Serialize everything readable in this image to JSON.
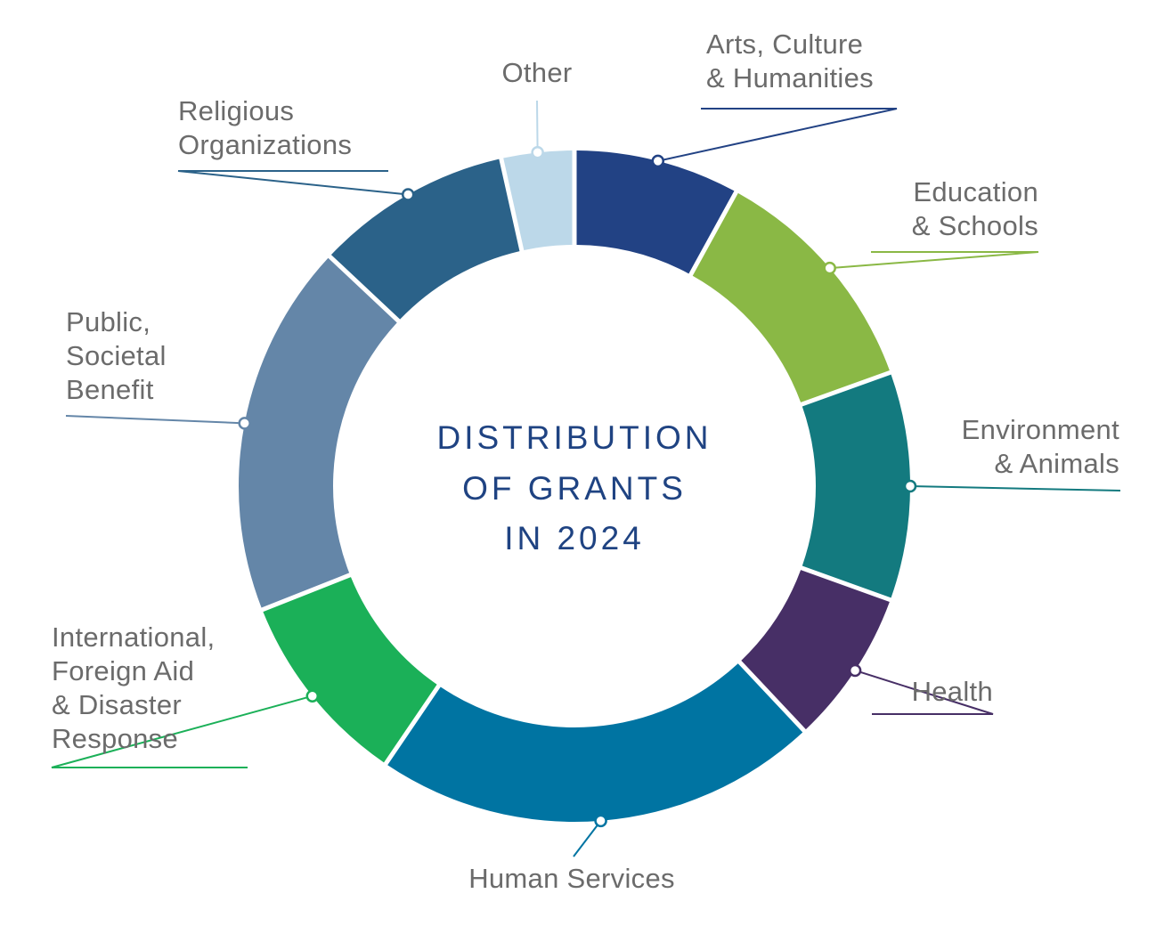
{
  "chart_data": {
    "type": "pie",
    "donut": true,
    "title_lines": [
      "DISTRIBUTION",
      "OF GRANTS",
      "IN 2024"
    ],
    "legend": "callout labels around ring",
    "slices": [
      {
        "name_lines": [
          "Arts, Culture",
          "& Humanities"
        ],
        "value": 8.0,
        "color": "#224284"
      },
      {
        "name_lines": [
          "Education",
          "& Schools"
        ],
        "value": 11.5,
        "color": "#8ab845"
      },
      {
        "name_lines": [
          "Environment",
          "& Animals"
        ],
        "value": 11.0,
        "color": "#137a7f"
      },
      {
        "name_lines": [
          "Health"
        ],
        "value": 7.5,
        "color": "#472f66"
      },
      {
        "name_lines": [
          "Human Services"
        ],
        "value": 21.5,
        "color": "#0074a2"
      },
      {
        "name_lines": [
          "International,",
          "Foreign Aid",
          "& Disaster",
          "Response"
        ],
        "value": 9.5,
        "color": "#1bb058"
      },
      {
        "name_lines": [
          "Public,",
          "Societal",
          "Benefit"
        ],
        "value": 18.0,
        "color": "#6486a8"
      },
      {
        "name_lines": [
          "Religious",
          "Organizations"
        ],
        "value": 9.5,
        "color": "#2b6289"
      },
      {
        "name_lines": [
          "Other"
        ],
        "value": 3.5,
        "color": "#bcd8e9"
      }
    ]
  }
}
